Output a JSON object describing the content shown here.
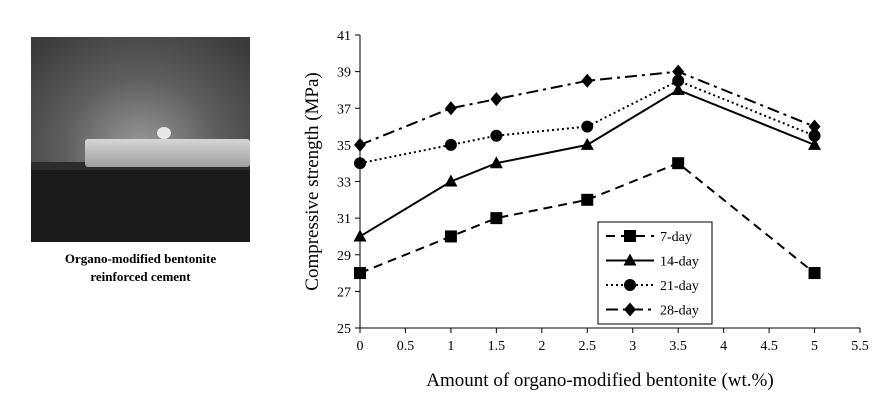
{
  "photo": {
    "caption_lines": [
      "Organo-modified bentonite",
      "reinforced cement"
    ]
  },
  "chart_data": {
    "type": "line",
    "xlabel": "Amount of organo-modified bentonite (wt.%)",
    "ylabel": "Compressive strength (MPa)",
    "x": [
      0,
      1,
      1.5,
      2.5,
      3.5,
      5
    ],
    "xlim": [
      0,
      5.5
    ],
    "ylim": [
      25,
      41
    ],
    "xticks": [
      0,
      0.5,
      1,
      1.5,
      2,
      2.5,
      3,
      3.5,
      4,
      4.5,
      5,
      5.5
    ],
    "yticks": [
      25,
      27,
      29,
      31,
      33,
      35,
      37,
      39,
      41
    ],
    "grid": false,
    "legend": "bottom-right",
    "series": [
      {
        "name": "7-day",
        "values": [
          28,
          30,
          31,
          32,
          34,
          28
        ],
        "marker": "square",
        "dash": "dashed"
      },
      {
        "name": "14-day",
        "values": [
          30,
          33,
          34,
          35,
          38,
          35
        ],
        "marker": "triangle",
        "dash": "solid"
      },
      {
        "name": "21-day",
        "values": [
          34,
          35,
          35.5,
          36,
          38.5,
          35.5
        ],
        "marker": "circle",
        "dash": "dotted"
      },
      {
        "name": "28-day",
        "values": [
          35,
          37,
          37.5,
          38.5,
          39,
          36
        ],
        "marker": "diamond",
        "dash": "dashdot"
      }
    ]
  }
}
